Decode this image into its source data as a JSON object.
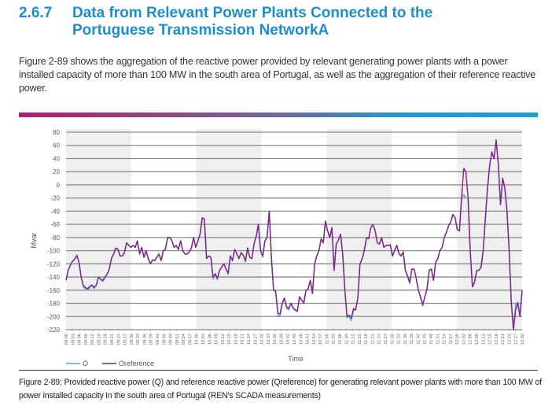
{
  "section": {
    "number": "2.6.7",
    "title": "Data from Relevant Power Plants Connected to the Portuguese Transmission NetworkA"
  },
  "paragraph": "Figure 2-89 shows the aggregation of the reactive power provided by relevant generating power plants with a power installed capacity of more than 100 MW in the south area of Portugal, as well as the aggregation of their reference reactive power.",
  "caption": "Figure 2-89: Provided reactive power (Q) and reference reactive power (Qreference) for generating relevant power plants with more than 100 MW of power installed capacity in the south area of Portugal (REN's SCADA measurements)",
  "colors": {
    "heading": "#1a8fd0",
    "q": "#4db3d9",
    "qreference": "#8a1f82",
    "band": "#efefef",
    "grid": "#8c8c8c"
  },
  "chart_data": {
    "type": "line",
    "title": "",
    "xlabel": "Time",
    "ylabel": "Mvar",
    "ylim": [
      -220,
      80
    ],
    "yticks": [
      80,
      60,
      40,
      20,
      0,
      -20,
      -40,
      -60,
      -80,
      -100,
      -120,
      -140,
      -160,
      -180,
      -200,
      -220
    ],
    "grid": true,
    "legend_position": "bottom-left",
    "legend": [
      "Q",
      "Qreference"
    ],
    "xtick_labels": [
      "09:00",
      "09:03",
      "09:06",
      "09:09",
      "09:12",
      "09:15",
      "09:18",
      "09:21",
      "09:24",
      "09:27",
      "09:30",
      "09:33",
      "09:36",
      "09:39",
      "09:42",
      "09:45",
      "09:48",
      "09:51",
      "09:54",
      "09:57",
      "10:00",
      "10:03",
      "10:06",
      "10:09",
      "10:12",
      "10:15",
      "10:18",
      "10:21",
      "10:24",
      "10:27",
      "10:30",
      "10:33",
      "10:36",
      "10:39",
      "10:42",
      "10:45",
      "10:48",
      "10:51",
      "10:54",
      "10:57",
      "11:00",
      "11:03",
      "11:06",
      "11:09",
      "11:12",
      "11:15",
      "11:18",
      "11:21",
      "11:24",
      "11:27",
      "11:30",
      "11:33",
      "11:36",
      "11:39",
      "11:42",
      "11:45",
      "11:48",
      "11:51",
      "11:54",
      "11:57",
      "12:00",
      "12:03",
      "12:06",
      "12:09",
      "12:12",
      "12:15",
      "12:18",
      "12:21",
      "12:24",
      "12:27",
      "12:30"
    ],
    "shaded_intervals": [
      [
        "09:00",
        "09:30"
      ],
      [
        "10:00",
        "10:30"
      ],
      [
        "11:00",
        "11:30"
      ],
      [
        "12:00",
        "12:30"
      ]
    ],
    "x_minutes_step": 1.5,
    "x_start": "09:00",
    "series": [
      {
        "name": "Qreference",
        "values": [
          -145,
          -130,
          -122,
          -116,
          -113,
          -107,
          -118,
          -140,
          -153,
          -156,
          -158,
          -154,
          -152,
          -156,
          -152,
          -140,
          -143,
          -145,
          -140,
          -136,
          -128,
          -112,
          -105,
          -96,
          -98,
          -108,
          -108,
          -103,
          -88,
          -92,
          -95,
          -92,
          -95,
          -85,
          -105,
          -95,
          -110,
          -100,
          -112,
          -120,
          -114,
          -115,
          -110,
          -105,
          -115,
          -100,
          -98,
          -80,
          -80,
          -85,
          -95,
          -92,
          -98,
          -85,
          -100,
          -105,
          -105,
          -102,
          -96,
          -80,
          -95,
          -85,
          -75,
          -50,
          -52,
          -112,
          -108,
          -110,
          -140,
          -135,
          -142,
          -130,
          -125,
          -120,
          -128,
          -134,
          -108,
          -115,
          -98,
          -105,
          -112,
          -103,
          -107,
          -115,
          -96,
          -110,
          -112,
          -90,
          -78,
          -60,
          -100,
          -108,
          -85,
          -80,
          -40,
          -110,
          -160,
          -162,
          -195,
          -196,
          -180,
          -172,
          -185,
          -188,
          -180,
          -186,
          -190,
          -192,
          -170,
          -175,
          -180,
          -160,
          -158,
          -145,
          -165,
          -120,
          -108,
          -100,
          -82,
          -88,
          -55,
          -70,
          -80,
          -65,
          -130,
          -90,
          -84,
          -75,
          -105,
          -160,
          -200,
          -198,
          -202,
          -188,
          -190,
          -172,
          -120,
          -112,
          -100,
          -80,
          -82,
          -65,
          -60,
          -70,
          -88,
          -90,
          -80,
          -95,
          -92,
          -92,
          -91,
          -108,
          -100,
          -92,
          -104,
          -108,
          -102,
          -130,
          -138,
          -148,
          -128,
          -128,
          -142,
          -160,
          -170,
          -182,
          -170,
          -158,
          -130,
          -128,
          -145,
          -118,
          -112,
          -100,
          -95,
          -80,
          -72,
          -62,
          -56,
          -45,
          -50,
          -68,
          -70,
          -20,
          25,
          20,
          -20,
          -100,
          -155,
          -148,
          -130,
          -130,
          -125,
          -100,
          -50,
          -5,
          30,
          50,
          40,
          68,
          30,
          -30,
          10,
          -5,
          -40,
          -100,
          -180,
          -220,
          -190,
          -180,
          -200,
          -160
        ]
      },
      {
        "name": "Q",
        "values": [
          -145,
          -130,
          -122,
          -116,
          -113,
          -107,
          -118,
          -140,
          -155,
          -158,
          -160,
          -156,
          -153,
          -157,
          -153,
          -140,
          -144,
          -147,
          -141,
          -136,
          -128,
          -112,
          -105,
          -96,
          -98,
          -108,
          -108,
          -103,
          -88,
          -92,
          -95,
          -92,
          -95,
          -85,
          -105,
          -95,
          -110,
          -100,
          -112,
          -120,
          -114,
          -115,
          -110,
          -105,
          -115,
          -100,
          -98,
          -80,
          -80,
          -85,
          -95,
          -92,
          -98,
          -85,
          -100,
          -105,
          -105,
          -102,
          -96,
          -80,
          -95,
          -85,
          -75,
          -50,
          -52,
          -112,
          -108,
          -110,
          -143,
          -135,
          -144,
          -130,
          -125,
          -120,
          -128,
          -136,
          -108,
          -115,
          -98,
          -105,
          -112,
          -103,
          -107,
          -117,
          -96,
          -110,
          -112,
          -90,
          -78,
          -60,
          -100,
          -110,
          -85,
          -80,
          -40,
          -110,
          -160,
          -162,
          -198,
          -199,
          -182,
          -172,
          -187,
          -190,
          -180,
          -188,
          -190,
          -192,
          -170,
          -175,
          -180,
          -160,
          -158,
          -145,
          -165,
          -120,
          -108,
          -100,
          -82,
          -88,
          -55,
          -70,
          -80,
          -65,
          -130,
          -90,
          -84,
          -75,
          -105,
          -160,
          -202,
          -200,
          -206,
          -190,
          -190,
          -172,
          -120,
          -112,
          -100,
          -80,
          -82,
          -65,
          -60,
          -70,
          -88,
          -90,
          -80,
          -95,
          -92,
          -92,
          -91,
          -108,
          -100,
          -92,
          -104,
          -108,
          -102,
          -130,
          -140,
          -150,
          -128,
          -128,
          -142,
          -160,
          -172,
          -184,
          -170,
          -158,
          -130,
          -128,
          -145,
          -118,
          -112,
          -100,
          -95,
          -80,
          -72,
          -62,
          -56,
          -45,
          -50,
          -68,
          -70,
          -20,
          -15,
          -20,
          -20,
          -100,
          -155,
          -148,
          -130,
          -130,
          -125,
          -100,
          -50,
          -5,
          30,
          50,
          40,
          68,
          30,
          -30,
          10,
          -5,
          -40,
          -100,
          -180,
          -220,
          -182,
          -178,
          -198,
          -160
        ]
      }
    ]
  }
}
